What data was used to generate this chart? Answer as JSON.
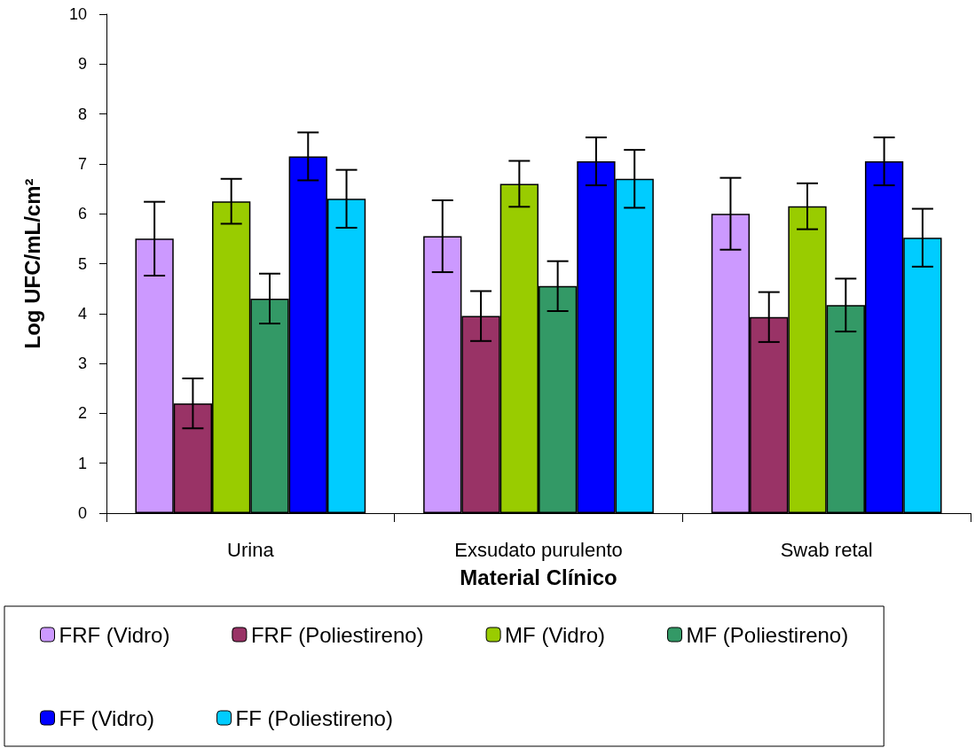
{
  "chart_data": {
    "type": "bar",
    "xlabel": "Material Clínico",
    "ylabel": "Log UFC/mL/cm²",
    "categories": [
      "Urina",
      "Exsudato purulento",
      "Swab retal"
    ],
    "series": [
      {
        "name": "FRF (Vidro)",
        "color": "#cc99ff",
        "values": [
          5.5,
          5.55,
          6.0
        ],
        "errors": [
          0.74,
          0.72,
          0.72
        ]
      },
      {
        "name": "FRF (Poliestireno)",
        "color": "#993366",
        "values": [
          2.2,
          3.95,
          3.93
        ],
        "errors": [
          0.5,
          0.5,
          0.5
        ]
      },
      {
        "name": "MF (Vidro)",
        "color": "#99cc00",
        "values": [
          6.25,
          6.6,
          6.15
        ],
        "errors": [
          0.45,
          0.46,
          0.46
        ]
      },
      {
        "name": "MF (Poliestireno)",
        "color": "#339966",
        "values": [
          4.3,
          4.55,
          4.17
        ],
        "errors": [
          0.5,
          0.5,
          0.53
        ]
      },
      {
        "name": "FF (Vidro)",
        "color": "#0000ff",
        "values": [
          7.15,
          7.05,
          7.05
        ],
        "errors": [
          0.48,
          0.48,
          0.48
        ]
      },
      {
        "name": "FF (Poliestireno)",
        "color": "#00ccff",
        "values": [
          6.3,
          6.7,
          5.52
        ],
        "errors": [
          0.58,
          0.58,
          0.58
        ]
      }
    ],
    "ylim": [
      0,
      10
    ],
    "yticks": [
      0,
      1,
      2,
      3,
      4,
      5,
      6,
      7,
      8,
      9,
      10
    ],
    "grid": false,
    "legend": "bottom"
  }
}
